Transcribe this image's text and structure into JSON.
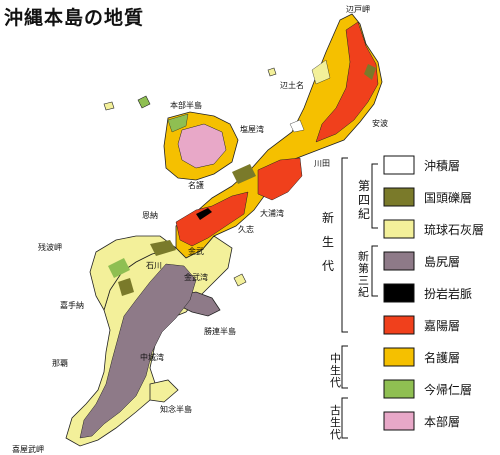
{
  "title": "沖縄本島の地質",
  "places": {
    "hedo": "辺戸岬",
    "hentona": "辺土名",
    "motobu": "本部半島",
    "shioya": "塩屋湾",
    "ada": "安波",
    "kawata": "川田",
    "nago": "名護",
    "onna": "恩納",
    "oura": "大浦湾",
    "kushi": "久志",
    "kin": "金武",
    "ishikawa": "石川",
    "kinwan": "金武湾",
    "zanpa": "残波岬",
    "katsuren": "勝連半島",
    "kadena": "嘉手納",
    "nakagusuku": "中城湾",
    "naha": "那覇",
    "chinen": "知念半島",
    "kyan": "喜屋武岬"
  },
  "eras": {
    "cenozoic": [
      "新",
      "生",
      "代"
    ],
    "mesozoic": [
      "中",
      "生",
      "代"
    ],
    "paleozoic": [
      "古",
      "生",
      "代"
    ]
  },
  "periods": {
    "quaternary": [
      "第",
      "四",
      "紀"
    ],
    "neogene": [
      "新",
      "第",
      "三",
      "紀"
    ]
  },
  "legend": [
    {
      "label": "沖積層",
      "color": "#ffffff"
    },
    {
      "label": "国頭礫層",
      "color": "#7a7a2a"
    },
    {
      "label": "琉球石灰層",
      "color": "#f3f09a"
    },
    {
      "label": "島尻層",
      "color": "#8e7a88"
    },
    {
      "label": "扮岩岩脈",
      "color": "#000000"
    },
    {
      "label": "嘉陽層",
      "color": "#f0401c"
    },
    {
      "label": "名護層",
      "color": "#f5c000"
    },
    {
      "label": "今帰仁層",
      "color": "#8fbf52"
    },
    {
      "label": "本部層",
      "color": "#e8a8c8"
    }
  ]
}
